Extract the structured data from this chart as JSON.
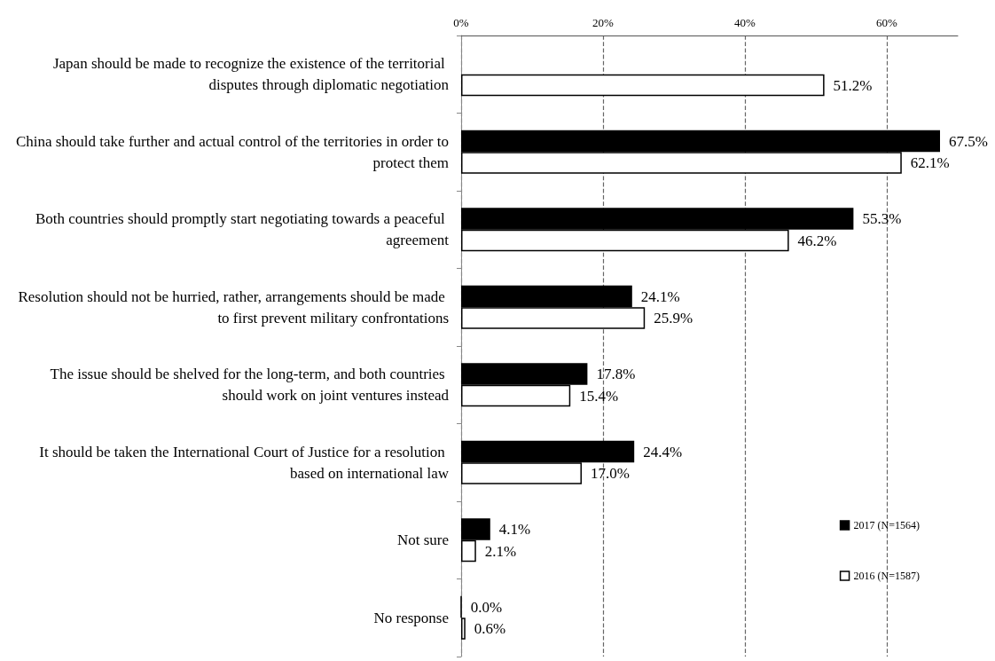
{
  "chart_data": {
    "type": "bar",
    "orientation": "horizontal",
    "categories": [
      "Japan should be made to recognize the existence of the territorial disputes through diplomatic negotiation",
      "China should take further and actual control of the territories in order to protect them",
      "Both countries should promptly start negotiating towards a peaceful agreement",
      "Resolution should not be hurried, rather, arrangements should be made to first prevent military confrontations",
      "The issue should be shelved for the long-term, and both countries should work on joint ventures instead",
      "It should be taken the International Court of Justice for a resolution based on international law",
      "Not sure",
      "No response"
    ],
    "series": [
      {
        "name": "2017 (N=1564)",
        "color": "#000000",
        "values": [
          null,
          67.5,
          55.3,
          24.1,
          17.8,
          24.4,
          4.1,
          0.0
        ],
        "value_labels": [
          null,
          "67.5%",
          "55.3%",
          "24.1%",
          "17.8%",
          "24.4%",
          "4.1%",
          "0.0%"
        ]
      },
      {
        "name": "2016 (N=1587)",
        "color": "#ffffff",
        "values": [
          51.2,
          62.1,
          46.2,
          25.9,
          15.4,
          17.0,
          2.1,
          0.6
        ],
        "value_labels": [
          "51.2%",
          "62.1%",
          "46.2%",
          "25.9%",
          "15.4%",
          "17.0%",
          "2.1%",
          "0.6%"
        ]
      }
    ],
    "xlim": [
      0,
      70
    ],
    "xticks": [
      {
        "value": 0,
        "label": "0%"
      },
      {
        "value": 20,
        "label": "20%"
      },
      {
        "value": 40,
        "label": "40%"
      },
      {
        "value": 60,
        "label": "60%"
      }
    ],
    "grid": "x",
    "legend": "bottom right"
  }
}
